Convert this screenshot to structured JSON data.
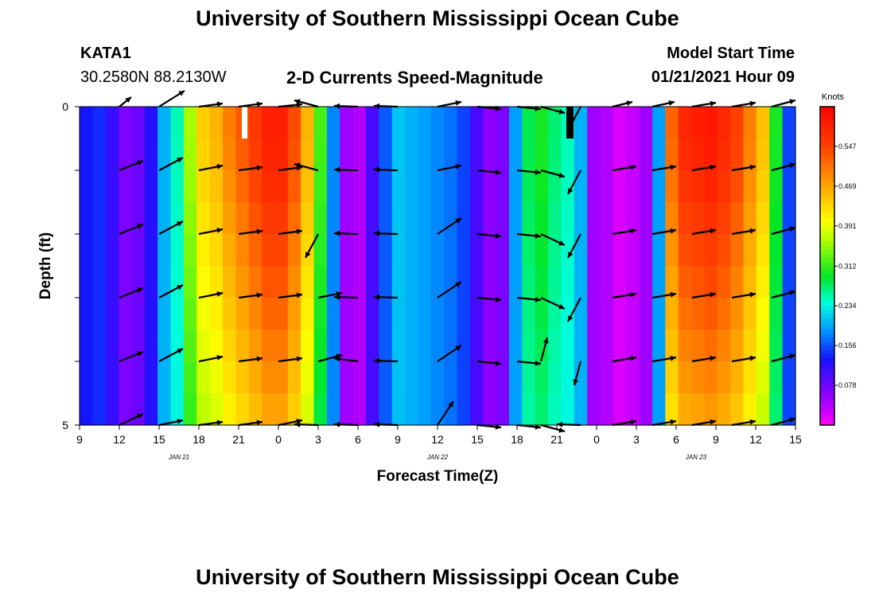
{
  "header": {
    "title": "University of Southern Mississippi Ocean Cube",
    "station_id": "KATA1",
    "coordinates": "30.2580N 88.2130W",
    "plot_title": "2-D Currents Speed-Magnitude",
    "model_start_label": "Model Start Time",
    "model_start_value": "01/21/2021 Hour 09"
  },
  "footer": {
    "title": "University of Southern Mississippi Ocean Cube"
  },
  "chart_data": {
    "type": "heatmap",
    "title": "2-D Currents Speed-Magnitude",
    "xlabel": "Forecast Time(Z)",
    "ylabel": "Depth (ft)",
    "x_tick_labels": [
      "9",
      "12",
      "15",
      "18",
      "21",
      "0",
      "3",
      "6",
      "9",
      "12",
      "15",
      "18",
      "21",
      "0",
      "3",
      "6",
      "9",
      "12",
      "15"
    ],
    "x_hours_range": [
      0,
      54
    ],
    "date_labels": [
      {
        "text": "JAN  21",
        "hour": 7.5
      },
      {
        "text": "JAN  22",
        "hour": 27
      },
      {
        "text": "JAN  23",
        "hour": 46.5
      }
    ],
    "y_tick_labels": [
      "0",
      "5"
    ],
    "ylim": [
      0,
      5
    ],
    "colorbar": {
      "unit": "Knots",
      "tick_labels": [
        "0.547",
        "0.469",
        "0.391",
        "0.312",
        "0.234",
        "0.156",
        "0.078"
      ],
      "tick_values": [
        0.547,
        0.469,
        0.391,
        0.312,
        0.234,
        0.156,
        0.078
      ],
      "range": [
        0.0,
        0.625
      ]
    },
    "speed_profile_surface": [
      0.13,
      0.14,
      0.11,
      0.07,
      0.08,
      0.12,
      0.2,
      0.25,
      0.36,
      0.44,
      0.46,
      0.5,
      0.53,
      0.56,
      0.59,
      0.59,
      0.54,
      0.46,
      0.32,
      0.18,
      0.05,
      0.04,
      0.1,
      0.16,
      0.21,
      0.2,
      0.19,
      0.18,
      0.17,
      0.15,
      0.1,
      0.06,
      0.07,
      0.19,
      0.28,
      0.3,
      0.27,
      0.25,
      0.2,
      0.05,
      0.04,
      0.02,
      0.03,
      0.05,
      0.19,
      0.52,
      0.58,
      0.59,
      0.6,
      0.58,
      0.55,
      0.5,
      0.45,
      0.3,
      0.15
    ],
    "depth_factors": [
      1.0,
      0.97,
      0.9,
      0.83,
      0.76,
      0.68
    ],
    "vector_rows": [
      [
        [
          15,
          12
        ],
        [
          32,
          20
        ],
        [
          30,
          4
        ],
        [
          30,
          4
        ],
        [
          30,
          3
        ],
        [
          -30,
          8
        ],
        [
          -30,
          1
        ],
        [
          -30,
          1
        ],
        [
          30,
          6
        ],
        [
          30,
          -3
        ],
        [
          30,
          -3
        ],
        [
          30,
          -8
        ],
        [
          -16,
          -30
        ],
        [
          25,
          6
        ],
        [
          28,
          6
        ],
        [
          30,
          5
        ],
        [
          30,
          5
        ],
        [
          30,
          8
        ],
        [
          28,
          12
        ]
      ],
      [
        [
          30,
          12
        ],
        [
          30,
          16
        ],
        [
          30,
          6
        ],
        [
          30,
          4
        ],
        [
          30,
          4
        ],
        [
          -30,
          8
        ],
        [
          -30,
          1
        ],
        [
          -30,
          1
        ],
        [
          30,
          6
        ],
        [
          30,
          -3
        ],
        [
          30,
          -3
        ],
        [
          30,
          -8
        ],
        [
          -16,
          -30
        ],
        [
          30,
          5
        ],
        [
          30,
          5
        ],
        [
          30,
          5
        ],
        [
          30,
          5
        ],
        [
          30,
          8
        ],
        [
          30,
          14
        ]
      ],
      [
        [
          30,
          12
        ],
        [
          30,
          16
        ],
        [
          30,
          6
        ],
        [
          30,
          4
        ],
        [
          30,
          4
        ],
        [
          -16,
          -30
        ],
        [
          -30,
          1
        ],
        [
          -30,
          1
        ],
        [
          30,
          20
        ],
        [
          30,
          -3
        ],
        [
          30,
          -3
        ],
        [
          30,
          -14
        ],
        [
          -16,
          -30
        ],
        [
          30,
          5
        ],
        [
          30,
          5
        ],
        [
          30,
          5
        ],
        [
          30,
          5
        ],
        [
          30,
          8
        ],
        [
          30,
          14
        ]
      ],
      [
        [
          30,
          12
        ],
        [
          30,
          16
        ],
        [
          30,
          6
        ],
        [
          30,
          4
        ],
        [
          30,
          4
        ],
        [
          30,
          6
        ],
        [
          -30,
          1
        ],
        [
          -30,
          1
        ],
        [
          30,
          20
        ],
        [
          30,
          -3
        ],
        [
          30,
          -3
        ],
        [
          30,
          -14
        ],
        [
          -16,
          -30
        ],
        [
          30,
          5
        ],
        [
          30,
          5
        ],
        [
          30,
          5
        ],
        [
          30,
          5
        ],
        [
          30,
          8
        ],
        [
          30,
          14
        ]
      ],
      [
        [
          30,
          12
        ],
        [
          30,
          16
        ],
        [
          30,
          6
        ],
        [
          30,
          4
        ],
        [
          30,
          4
        ],
        [
          30,
          8
        ],
        [
          -30,
          4
        ],
        [
          -30,
          1
        ],
        [
          30,
          20
        ],
        [
          30,
          -3
        ],
        [
          30,
          -3
        ],
        [
          8,
          30
        ],
        [
          -8,
          -30
        ],
        [
          30,
          5
        ],
        [
          30,
          5
        ],
        [
          30,
          5
        ],
        [
          30,
          5
        ],
        [
          30,
          8
        ],
        [
          30,
          14
        ]
      ],
      [
        [
          30,
          14
        ],
        [
          30,
          6
        ],
        [
          30,
          4
        ],
        [
          30,
          4
        ],
        [
          30,
          6
        ],
        [
          -30,
          1
        ],
        [
          -30,
          1
        ],
        [
          -30,
          1
        ],
        [
          20,
          30
        ],
        [
          30,
          -3
        ],
        [
          30,
          -3
        ],
        [
          30,
          -8
        ],
        [
          -30,
          1
        ],
        [
          30,
          5
        ],
        [
          30,
          5
        ],
        [
          30,
          5
        ],
        [
          30,
          5
        ],
        [
          30,
          8
        ],
        [
          30,
          14
        ]
      ]
    ]
  }
}
